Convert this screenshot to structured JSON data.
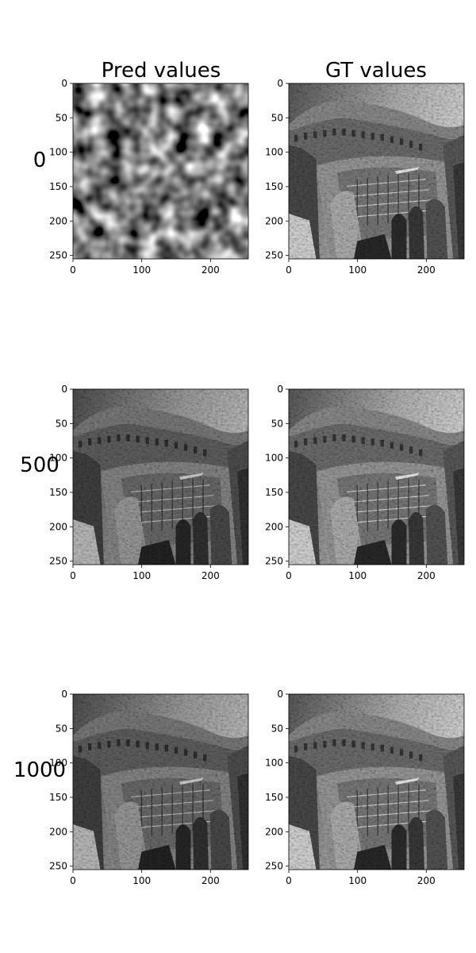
{
  "chart_data": {
    "type": "heatmap",
    "grid": {
      "rows": 3,
      "cols": 2
    },
    "column_titles": [
      "Pred values",
      "GT values"
    ],
    "row_labels": [
      "0",
      "500",
      "1000"
    ],
    "x_ticks": [
      0,
      100,
      200
    ],
    "y_ticks": [
      0,
      50,
      100,
      150,
      200,
      250
    ],
    "xlim": [
      0,
      255
    ],
    "ylim": [
      255,
      0
    ],
    "colormap": "gray",
    "panels": [
      {
        "row": 0,
        "col": 0,
        "content": "noise"
      },
      {
        "row": 0,
        "col": 1,
        "content": "image"
      },
      {
        "row": 1,
        "col": 0,
        "content": "image"
      },
      {
        "row": 1,
        "col": 1,
        "content": "image"
      },
      {
        "row": 2,
        "col": 0,
        "content": "image"
      },
      {
        "row": 2,
        "col": 1,
        "content": "image"
      }
    ]
  }
}
